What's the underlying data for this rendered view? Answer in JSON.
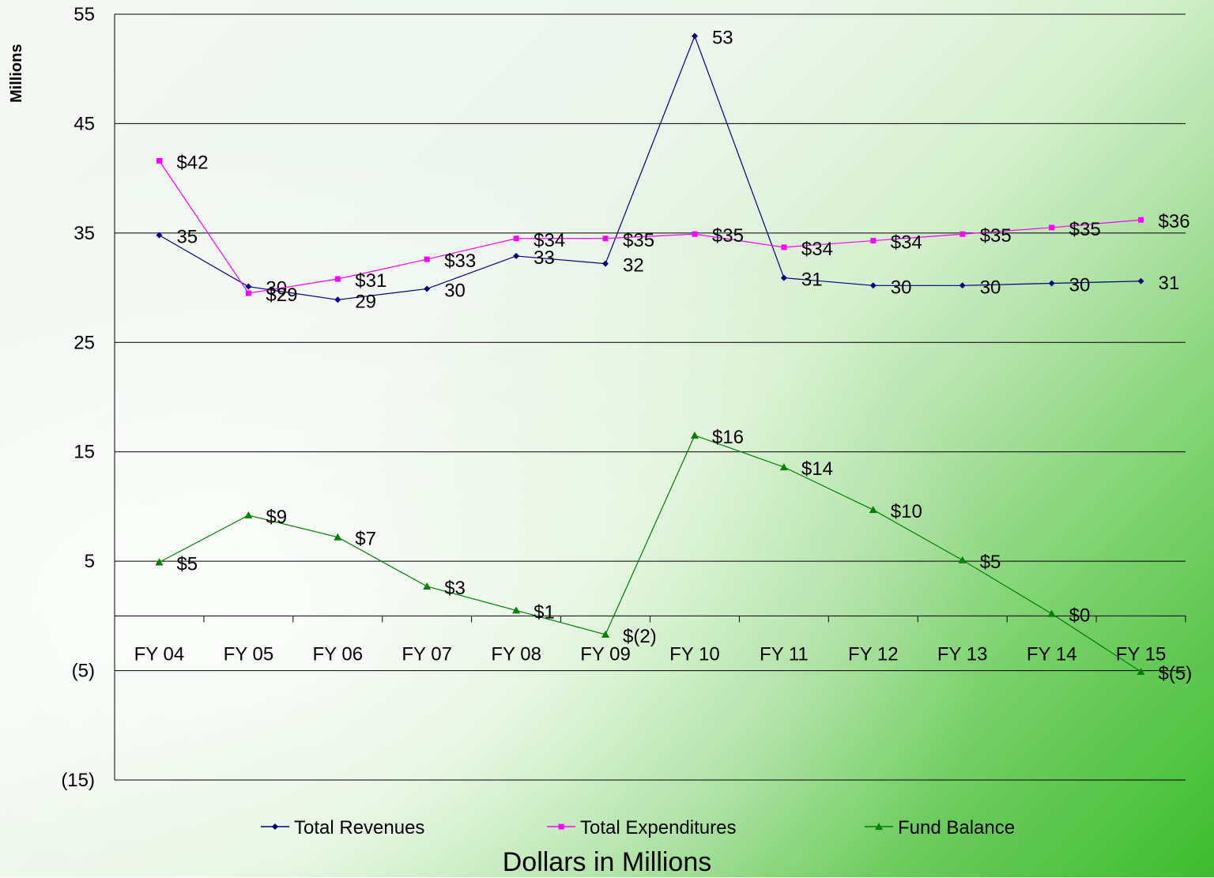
{
  "chart_data": {
    "type": "line",
    "title": "",
    "xlabel": "Dollars in Millions",
    "ylabel": "Millions",
    "ylim": [
      -15,
      55
    ],
    "yticks": [
      55,
      45,
      35,
      25,
      15,
      5,
      -5,
      -15
    ],
    "ytick_labels": [
      "55",
      "45",
      "35",
      "25",
      "15",
      "5",
      "(5)",
      "(15)"
    ],
    "categories": [
      "FY 04",
      "FY 05",
      "FY 06",
      "FY 07",
      "FY 08",
      "FY 09",
      "FY 10",
      "FY 11",
      "FY 12",
      "FY 13",
      "FY 14",
      "FY 15"
    ],
    "grid": true,
    "legend_position": "bottom",
    "series": [
      {
        "name": "Total Revenues",
        "color": "#000080",
        "marker": "diamond",
        "values": [
          34.8,
          30.1,
          28.9,
          29.9,
          32.9,
          32.2,
          53.0,
          30.9,
          30.2,
          30.2,
          30.4,
          30.6
        ],
        "labels": [
          "35",
          "30",
          "29",
          "30",
          "33",
          "32",
          "53",
          "31",
          "30",
          "30",
          "30",
          "31"
        ]
      },
      {
        "name": "Total Expenditures",
        "color": "#ff00ff",
        "marker": "square",
        "values": [
          41.6,
          29.5,
          30.8,
          32.6,
          34.5,
          34.5,
          34.9,
          33.7,
          34.3,
          34.9,
          35.5,
          36.2
        ],
        "labels": [
          "$42",
          "$29",
          "$31",
          "$33",
          "$34",
          "$35",
          "$35",
          "$34",
          "$34",
          "$35",
          "$35",
          "$36"
        ]
      },
      {
        "name": "Fund Balance",
        "color": "#008000",
        "marker": "triangle",
        "values": [
          4.9,
          9.2,
          7.2,
          2.7,
          0.5,
          -1.7,
          16.5,
          13.6,
          9.7,
          5.1,
          0.2,
          -5.1
        ],
        "labels": [
          "$5",
          "$9",
          "$7",
          "$3",
          "$1",
          "$(2)",
          "$16",
          "$14",
          "$10",
          "$5",
          "$0",
          "$(5)"
        ]
      }
    ]
  }
}
